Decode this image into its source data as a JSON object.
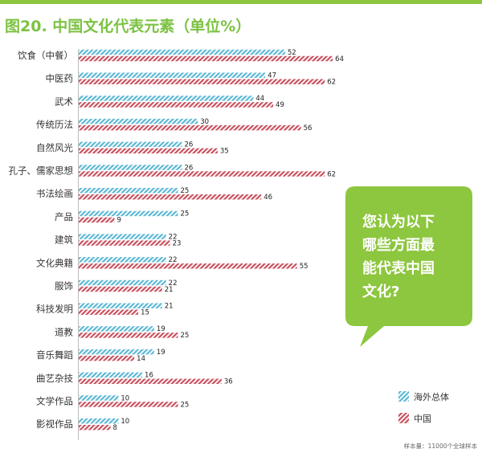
{
  "title": "图20. 中国文化代表元素（单位%）",
  "question_lines": [
    "您认为以下",
    "哪些方面最",
    "能代表中国",
    "文化?"
  ],
  "note": "样本量：11000个全球样本",
  "colors": {
    "brand": "#8dc63f",
    "overseas": "#5bb8d4",
    "china": "#c8505e"
  },
  "chart_data": {
    "type": "bar",
    "orientation": "horizontal",
    "title": "图20. 中国文化代表元素（单位%）",
    "xlabel": "",
    "ylabel": "",
    "xlim": [
      0,
      70
    ],
    "legend_position": "bottom-right",
    "categories": [
      "饮食（中餐）",
      "中医药",
      "武术",
      "传统历法",
      "自然风光",
      "孔子、儒家思想",
      "书法绘画",
      "产品",
      "建筑",
      "文化典籍",
      "服饰",
      "科技发明",
      "道教",
      "音乐舞蹈",
      "曲艺杂技",
      "文学作品",
      "影视作品"
    ],
    "series": [
      {
        "name": "海外总体",
        "color": "#5bb8d4",
        "values": [
          52,
          47,
          44,
          30,
          26,
          26,
          25,
          25,
          22,
          22,
          22,
          21,
          19,
          19,
          16,
          10,
          10
        ]
      },
      {
        "name": "中国",
        "color": "#c8505e",
        "values": [
          64,
          62,
          49,
          56,
          35,
          62,
          46,
          9,
          23,
          55,
          21,
          15,
          25,
          14,
          36,
          25,
          8
        ]
      }
    ]
  }
}
